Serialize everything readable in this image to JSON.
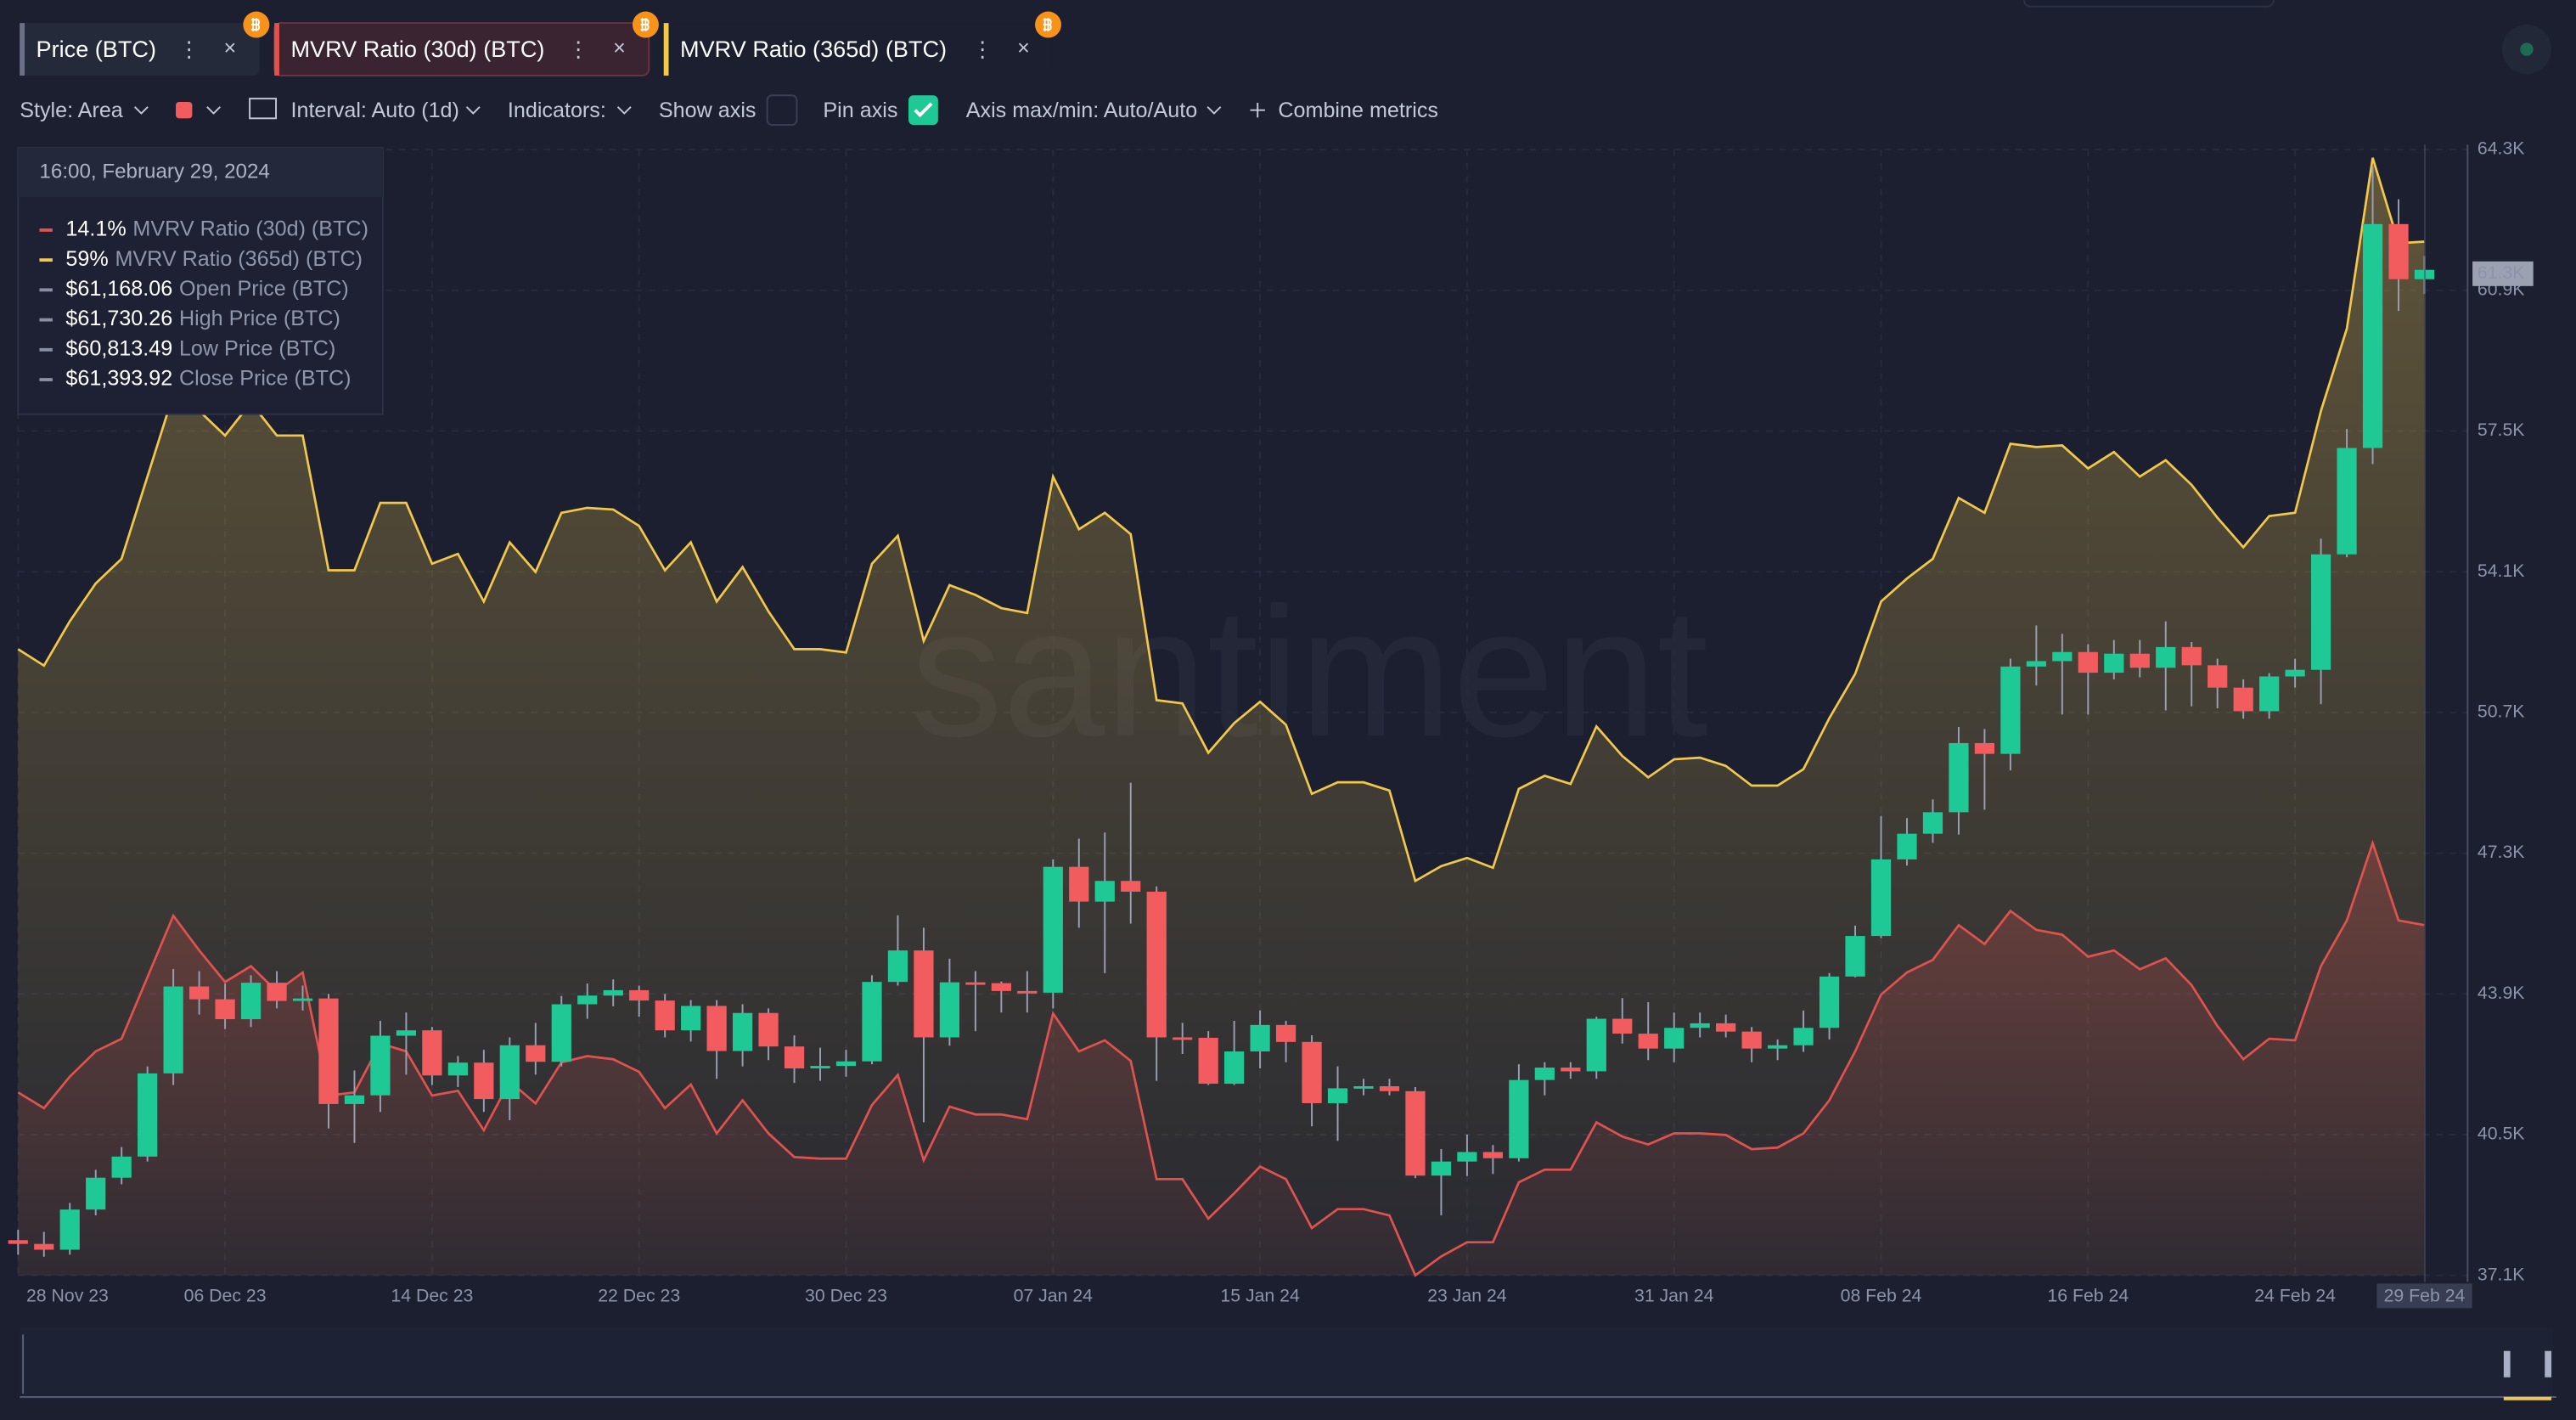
{
  "ui": {
    "toolbar": {
      "style": "Style: Area",
      "interval": "Interval: Auto (1d)",
      "indicators": "Indicators:",
      "show_axis": "Show axis",
      "pin_axis": "Pin axis",
      "axis_range": "Axis max/min: Auto/Auto",
      "combine": "Combine metrics"
    },
    "watermark": "santiment"
  },
  "tooltip": {
    "title": "16:00, February 29, 2024",
    "rows": [
      {
        "value": "14.1%",
        "name": "MVRV Ratio (30d) (BTC)",
        "color": "#e0524f"
      },
      {
        "value": "59%",
        "name": "MVRV Ratio (365d) (BTC)",
        "color": "#f2c84b"
      },
      {
        "value": "$61,168.06",
        "name": "Open Price (BTC)",
        "color": "#8a8fa3"
      },
      {
        "value": "$61,730.26",
        "name": "High Price (BTC)",
        "color": "#8a8fa3"
      },
      {
        "value": "$60,813.49",
        "name": "Low Price (BTC)",
        "color": "#8a8fa3"
      },
      {
        "value": "$61,393.92",
        "name": "Close Price (BTC)",
        "color": "#8a8fa3"
      }
    ]
  },
  "chart_data": {
    "type": "candlestick",
    "categories": [
      "28 Nov 23",
      null,
      null,
      null,
      null,
      null,
      null,
      null,
      "06 Dec 23",
      null,
      null,
      null,
      null,
      null,
      null,
      null,
      "14 Dec 23",
      null,
      null,
      null,
      null,
      null,
      null,
      null,
      "22 Dec 23",
      null,
      null,
      null,
      null,
      null,
      null,
      null,
      "30 Dec 23",
      null,
      null,
      null,
      null,
      null,
      null,
      null,
      "07 Jan 24",
      null,
      null,
      null,
      null,
      null,
      null,
      null,
      "15 Jan 24",
      null,
      null,
      null,
      null,
      null,
      null,
      null,
      "23 Jan 24",
      null,
      null,
      null,
      null,
      null,
      null,
      null,
      "31 Jan 24",
      null,
      null,
      null,
      null,
      null,
      null,
      null,
      "08 Feb 24",
      null,
      null,
      null,
      null,
      null,
      null,
      null,
      "16 Feb 24",
      null,
      null,
      null,
      null,
      null,
      null,
      null,
      "24 Feb 24",
      null,
      null,
      null,
      null,
      "29 Feb 24"
    ],
    "ylim": [
      37100,
      64300
    ],
    "yticks": [
      {
        "value": 37100,
        "label": "37.1K"
      },
      {
        "value": 40500,
        "label": "40.5K"
      },
      {
        "value": 43900,
        "label": "43.9K"
      },
      {
        "value": 47300,
        "label": "47.3K"
      },
      {
        "value": 50700,
        "label": "50.7K"
      },
      {
        "value": 54100,
        "label": "54.1K"
      },
      {
        "value": 57500,
        "label": "57.5K"
      },
      {
        "value": 60900,
        "label": "60.9K"
      },
      {
        "value": 64300,
        "label": "64.3K"
      }
    ],
    "last_price": {
      "value": 61300,
      "label": "61.3K"
    },
    "grid": true,
    "series": [
      {
        "name": "Price (BTC)",
        "color": "#6b7087",
        "up_color": "#1fc995",
        "down_color": "#f25c5f",
        "open": [
          37950,
          37860,
          37720,
          38690,
          39460,
          39970,
          41980,
          44080,
          43770,
          43290,
          44170,
          43730,
          43790,
          41240,
          41450,
          42890,
          43020,
          41930,
          42240,
          41360,
          42660,
          42260,
          43650,
          43860,
          43990,
          43740,
          43020,
          43610,
          42520,
          43440,
          42630,
          42100,
          42160,
          42270,
          44190,
          44950,
          42850,
          44180,
          44160,
          43970,
          43930,
          46970,
          46130,
          46630,
          46370,
          42850,
          42840,
          41730,
          42510,
          43150,
          42740,
          41260,
          41620,
          41670,
          41550,
          39510,
          39850,
          40080,
          39930,
          41820,
          42120,
          42030,
          43300,
          42940,
          42580,
          43080,
          43190,
          42990,
          42580,
          42660,
          43080,
          44320,
          45300,
          47150,
          47770,
          48290,
          49960,
          49700,
          51810,
          51940,
          52160,
          51660,
          52120,
          51780,
          52280,
          51840,
          51300,
          50730,
          51570,
          51730,
          54520,
          57090,
          62500,
          61168.06
        ],
        "high": [
          38200,
          38150,
          38850,
          39650,
          40200,
          42150,
          44500,
          44450,
          44150,
          44350,
          44450,
          44100,
          43900,
          42050,
          43250,
          43450,
          43100,
          42400,
          42550,
          42850,
          43200,
          43850,
          44150,
          44250,
          44100,
          43900,
          43750,
          43750,
          43650,
          43550,
          42900,
          42600,
          42550,
          44350,
          45800,
          45500,
          44750,
          44450,
          44200,
          44450,
          47150,
          47650,
          47800,
          49000,
          46500,
          43200,
          43000,
          43250,
          43500,
          43250,
          42900,
          42150,
          41850,
          41850,
          41650,
          40150,
          40500,
          40250,
          42200,
          42250,
          42250,
          43350,
          43800,
          43700,
          43450,
          43450,
          43400,
          43100,
          42800,
          43500,
          44400,
          45550,
          48200,
          48150,
          48600,
          50350,
          50300,
          52000,
          52800,
          52600,
          52350,
          52450,
          52450,
          52900,
          52400,
          52000,
          51500,
          51650,
          52000,
          54900,
          57550,
          63900,
          63100,
          61730.26
        ],
        "low": [
          37600,
          37550,
          37600,
          38550,
          39300,
          39850,
          41700,
          43400,
          43050,
          43100,
          43550,
          43500,
          40650,
          40300,
          41050,
          41950,
          41700,
          41650,
          41050,
          40850,
          41950,
          42150,
          43300,
          43600,
          43350,
          42850,
          42750,
          41850,
          42150,
          42300,
          41750,
          41800,
          41900,
          42200,
          44100,
          40800,
          42650,
          43000,
          43450,
          43450,
          43550,
          45500,
          44400,
          45600,
          41800,
          42450,
          41700,
          41700,
          42100,
          42250,
          40700,
          40350,
          41450,
          41450,
          39450,
          38550,
          39500,
          39550,
          39850,
          41450,
          41850,
          41850,
          42700,
          42300,
          42250,
          42850,
          42850,
          42250,
          42300,
          42500,
          42800,
          44300,
          45250,
          47000,
          47550,
          47750,
          48350,
          49300,
          51350,
          50650,
          50650,
          51500,
          51550,
          50750,
          50850,
          50800,
          50550,
          50550,
          51300,
          50900,
          54450,
          56700,
          60400,
          60813.49
        ],
        "close": [
          37860,
          37720,
          38690,
          39460,
          39970,
          41980,
          44080,
          43770,
          43290,
          44170,
          43730,
          43790,
          41240,
          41450,
          42890,
          43020,
          41930,
          42240,
          41360,
          42660,
          42260,
          43650,
          43860,
          43990,
          43740,
          43020,
          43610,
          42520,
          43440,
          42630,
          42100,
          42160,
          42270,
          44190,
          44950,
          42850,
          44180,
          44160,
          43970,
          43930,
          46970,
          46130,
          46630,
          46370,
          42850,
          42840,
          41730,
          42510,
          43150,
          42740,
          41260,
          41620,
          41670,
          41550,
          39510,
          39850,
          40080,
          39930,
          41820,
          42120,
          42030,
          43300,
          42940,
          42580,
          43080,
          43190,
          42990,
          42580,
          42660,
          43080,
          44320,
          45300,
          47150,
          47770,
          48290,
          49960,
          49700,
          51810,
          51940,
          52160,
          51660,
          52120,
          51780,
          52280,
          51840,
          51300,
          50730,
          51570,
          51730,
          54520,
          57090,
          62500,
          61168.06,
          61393.92
        ]
      },
      {
        "name": "MVRV Ratio (30d) (BTC)",
        "color": "#e0524f",
        "area": true,
        "values": [
          3.5,
          2.5,
          4.5,
          6.1,
          6.9,
          10.8,
          14.7,
          12.5,
          10.5,
          11.5,
          9.9,
          11.1,
          3.3,
          3.5,
          6.6,
          6.1,
          3.3,
          3.6,
          1.1,
          4.2,
          2.8,
          5.4,
          5.8,
          5.6,
          4.8,
          2.5,
          4.0,
          0.9,
          3.0,
          0.9,
          -0.6,
          -0.7,
          -0.7,
          2.7,
          4.6,
          -0.8,
          2.6,
          2.1,
          2.1,
          1.8,
          8.5,
          6.1,
          6.8,
          5.5,
          -2.0,
          -2.0,
          -4.5,
          -2.9,
          -1.2,
          -2.0,
          -5.1,
          -3.9,
          -3.9,
          -4.3,
          -8.1,
          -6.9,
          -6.0,
          -6.0,
          -2.2,
          -1.4,
          -1.4,
          1.6,
          0.7,
          0.2,
          0.9,
          0.9,
          0.8,
          -0.1,
          0.0,
          0.9,
          3.0,
          6.1,
          9.7,
          11.1,
          11.9,
          14.1,
          12.9,
          15.0,
          13.8,
          13.5,
          12.1,
          12.5,
          11.3,
          12.0,
          10.3,
          7.7,
          5.6,
          6.9,
          6.8,
          11.5,
          14.4,
          19.3,
          14.4,
          14.1
        ]
      },
      {
        "name": "MVRV Ratio (365d) (BTC)",
        "color": "#f2c84b",
        "area": true,
        "values": [
          34.2,
          33.2,
          35.9,
          38.2,
          39.7,
          44.7,
          49.7,
          48.7,
          47.2,
          49.2,
          47.2,
          47.2,
          39.0,
          39.0,
          43.1,
          43.1,
          39.4,
          40.0,
          37.1,
          40.7,
          38.9,
          42.5,
          42.8,
          42.7,
          41.7,
          39.0,
          40.7,
          37.1,
          39.2,
          36.5,
          34.2,
          34.2,
          34.0,
          39.4,
          41.1,
          34.7,
          38.1,
          37.5,
          36.7,
          36.4,
          44.7,
          41.5,
          42.5,
          41.2,
          31.1,
          30.9,
          27.9,
          29.7,
          31.0,
          29.6,
          25.4,
          26.1,
          26.1,
          25.6,
          20.1,
          21.0,
          21.5,
          20.9,
          25.7,
          26.5,
          26.0,
          29.5,
          27.7,
          26.4,
          27.5,
          27.6,
          27.1,
          25.9,
          25.9,
          26.9,
          30.0,
          32.7,
          37.1,
          38.5,
          39.7,
          43.4,
          42.5,
          46.7,
          46.5,
          46.6,
          45.2,
          46.2,
          44.7,
          45.7,
          44.2,
          42.2,
          40.4,
          42.3,
          42.5,
          48.7,
          53.7,
          64.1,
          58.9,
          59
        ]
      }
    ]
  }
}
